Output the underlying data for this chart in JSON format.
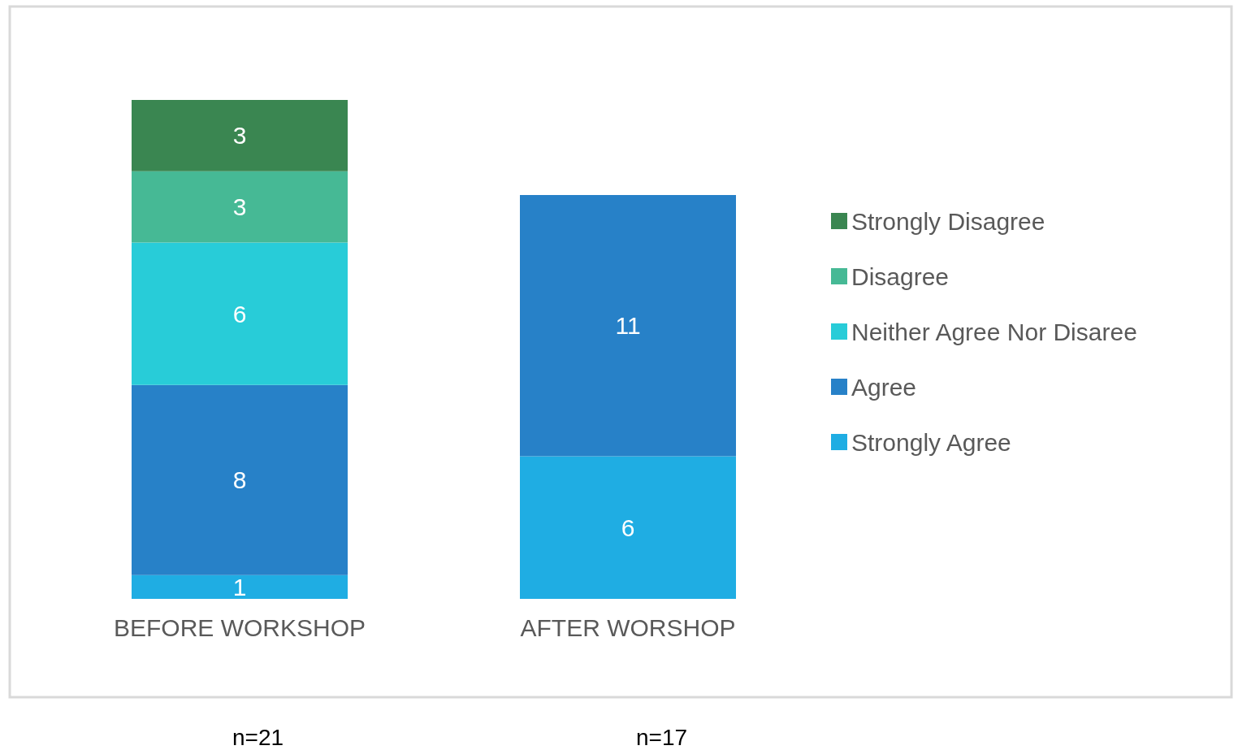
{
  "chart_data": {
    "type": "bar",
    "stacked": true,
    "data_labels": true,
    "legend": "right",
    "categories": [
      "BEFORE WORKSHOP",
      "AFTER WORSHOP"
    ],
    "series": [
      {
        "name": "Strongly Agree",
        "color": "#1fade3",
        "values": [
          1,
          6
        ]
      },
      {
        "name": "Agree",
        "color": "#2781c8",
        "values": [
          8,
          11
        ]
      },
      {
        "name": "Neither Agree Nor Disaree",
        "color": "#28ccd8",
        "values": [
          6,
          null
        ]
      },
      {
        "name": "Disagree",
        "color": "#46b995",
        "values": [
          3,
          null
        ]
      },
      {
        "name": "Strongly Disagree",
        "color": "#3a8651",
        "values": [
          3,
          null
        ]
      }
    ],
    "annotations": [
      "n=21",
      "n=17"
    ]
  }
}
